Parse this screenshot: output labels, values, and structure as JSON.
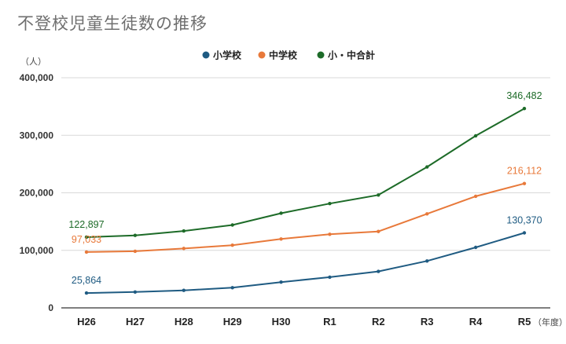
{
  "chart_data": {
    "type": "line",
    "title": "不登校児童生徒数の推移",
    "y_unit_label": "（人）",
    "x_unit_label": "（年度）",
    "categories": [
      "H26",
      "H27",
      "H28",
      "H29",
      "H30",
      "R1",
      "R2",
      "R3",
      "R4",
      "R5"
    ],
    "ylim": [
      0,
      400000
    ],
    "yticks": [
      0,
      100000,
      200000,
      300000,
      400000
    ],
    "ytick_labels": [
      "0",
      "100,000",
      "200,000",
      "300,000",
      "400,000"
    ],
    "grid": true,
    "legend_position": "top-center",
    "series": [
      {
        "name": "小学校",
        "color": "#1f5b82",
        "values": [
          25864,
          27583,
          30448,
          35032,
          44841,
          53350,
          63350,
          81498,
          105112,
          130370
        ],
        "labels": [
          {
            "index": 0,
            "text": "25,864",
            "place": "above"
          },
          {
            "index": 9,
            "text": "130,370",
            "place": "above"
          }
        ]
      },
      {
        "name": "中学校",
        "color": "#e8793a",
        "values": [
          97033,
          98408,
          103235,
          108999,
          119687,
          127922,
          132777,
          163442,
          193936,
          216112
        ],
        "labels": [
          {
            "index": 0,
            "text": "97,033",
            "place": "above"
          },
          {
            "index": 9,
            "text": "216,112",
            "place": "above"
          }
        ]
      },
      {
        "name": "小・中合計",
        "color": "#1d6b28",
        "values": [
          122897,
          125991,
          133683,
          144031,
          164528,
          181272,
          196127,
          244940,
          299048,
          346482
        ],
        "labels": [
          {
            "index": 0,
            "text": "122,897",
            "place": "above"
          },
          {
            "index": 9,
            "text": "346,482",
            "place": "above"
          }
        ]
      }
    ]
  }
}
